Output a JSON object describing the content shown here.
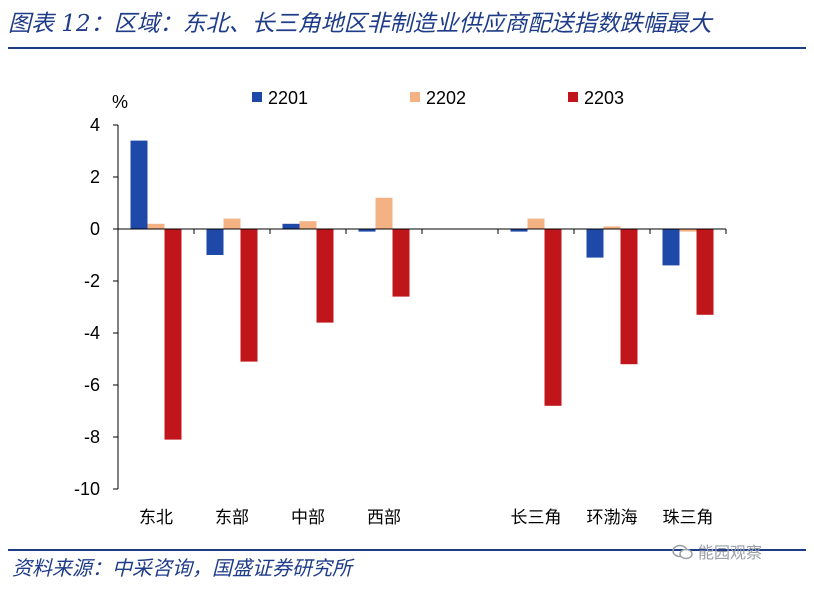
{
  "header": {
    "title": "图表 12：区域：东北、长三角地区非制造业供应商配送指数跌幅最大"
  },
  "footer": {
    "source": "资料来源：中采咨询，国盛证券研究所",
    "watermark": "能园观察"
  },
  "chart_data": {
    "type": "bar",
    "title": "图表 12：区域：东北、长三角地区非制造业供应商配送指数跌幅最大",
    "ylabel": "%",
    "xlabel": "",
    "ylim": [
      -10,
      4
    ],
    "yticks": [
      4,
      2,
      0,
      -2,
      -4,
      -6,
      -8,
      -10
    ],
    "categories": [
      "东北",
      "东部",
      "中部",
      "西部",
      "",
      "长三角",
      "环渤海",
      "珠三角"
    ],
    "series": [
      {
        "name": "2201",
        "color": "#1f49a8",
        "values": [
          3.4,
          -1.0,
          0.2,
          -0.1,
          null,
          -0.1,
          -1.1,
          -1.4
        ]
      },
      {
        "name": "2202",
        "color": "#f4b183",
        "values": [
          0.2,
          0.4,
          0.3,
          1.2,
          null,
          0.4,
          0.1,
          -0.1
        ]
      },
      {
        "name": "2203",
        "color": "#c0151b",
        "values": [
          -8.1,
          -5.1,
          -3.6,
          -2.6,
          null,
          -6.8,
          -5.2,
          -3.3
        ]
      }
    ],
    "legend_position": "top"
  }
}
